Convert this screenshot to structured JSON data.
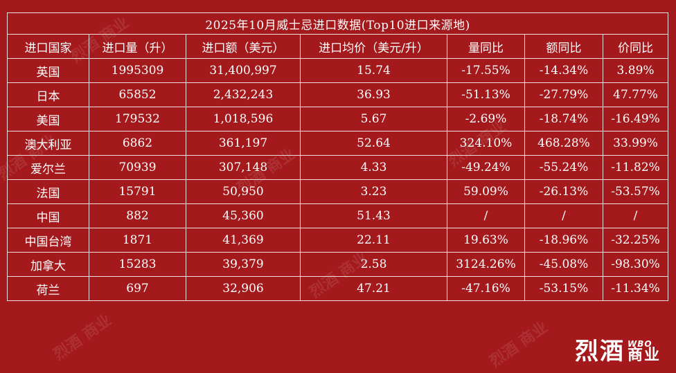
{
  "table": {
    "title": "2025年10月威士忌进口数据(Top10进口来源地)",
    "headers": [
      "进口国家",
      "进口量（升）",
      "进口额（美元）",
      "进口均价（美元/升）",
      "量同比",
      "额同比",
      "价同比"
    ],
    "rows": [
      [
        "英国",
        "1995309",
        "31,400,997",
        "15.74",
        "-17.55%",
        "-14.34%",
        "3.89%"
      ],
      [
        "日本",
        "65852",
        "2,432,243",
        "36.93",
        "-51.13%",
        "-27.79%",
        "47.77%"
      ],
      [
        "美国",
        "179532",
        "1,018,596",
        "5.67",
        "-2.69%",
        "-18.74%",
        "-16.49%"
      ],
      [
        "澳大利亚",
        "6862",
        "361,197",
        "52.64",
        "324.10%",
        "468.28%",
        "33.99%"
      ],
      [
        "爱尔兰",
        "70939",
        "307,148",
        "4.33",
        "-49.24%",
        "-55.24%",
        "-11.82%"
      ],
      [
        "法国",
        "15791",
        "50,950",
        "3.23",
        "59.09%",
        "-26.13%",
        "-53.57%"
      ],
      [
        "中国",
        "882",
        "45,360",
        "51.43",
        "/",
        "/",
        "/"
      ],
      [
        "中国台湾",
        "1871",
        "41,369",
        "22.11",
        "19.63%",
        "-18.96%",
        "-32.25%"
      ],
      [
        "加拿大",
        "15283",
        "39,379",
        "2.58",
        "3124.26%",
        "-45.08%",
        "-98.30%"
      ],
      [
        "荷兰",
        "697",
        "32,906",
        "47.21",
        "-47.16%",
        "-53.15%",
        "-11.34%"
      ]
    ]
  },
  "logo": {
    "main": "烈酒",
    "wbo": "WBO",
    "sub": "商业"
  },
  "colors": {
    "background": "#a3191c",
    "text": "#ffffff"
  }
}
